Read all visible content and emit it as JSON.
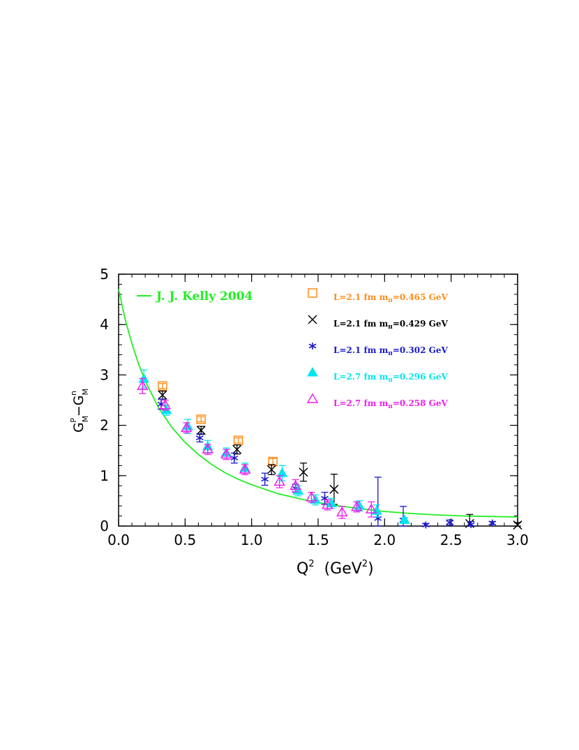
{
  "chart_data": {
    "type": "scatter",
    "x_axis": {
      "range": [
        0,
        3
      ],
      "ticks": [
        "0.0",
        "0.5",
        "1.0",
        "1.5",
        "2.0",
        "2.5",
        "3.0"
      ],
      "label_main": "Q",
      "label_sup": "2",
      "label_rest": "  (GeV",
      "label_sup2": "2",
      "label_close": ")"
    },
    "y_axis": {
      "range": [
        0,
        5
      ],
      "ticks": [
        "0",
        "1",
        "2",
        "3",
        "4",
        "5"
      ],
      "label_g1": "G",
      "label_sup1": "P",
      "label_sub1": "M",
      "label_minus": "−G",
      "label_sup2": "n",
      "label_sub2": "M"
    },
    "curve": {
      "name": "J. J. Kelly 2004",
      "color": "#22ee22",
      "points": [
        [
          0.0,
          4.7
        ],
        [
          0.05,
          4.1
        ],
        [
          0.1,
          3.62
        ],
        [
          0.15,
          3.22
        ],
        [
          0.2,
          2.88
        ],
        [
          0.3,
          2.35
        ],
        [
          0.4,
          1.96
        ],
        [
          0.5,
          1.66
        ],
        [
          0.6,
          1.42
        ],
        [
          0.7,
          1.22
        ],
        [
          0.8,
          1.06
        ],
        [
          0.9,
          0.93
        ],
        [
          1.0,
          0.82
        ],
        [
          1.2,
          0.64
        ],
        [
          1.4,
          0.52
        ],
        [
          1.6,
          0.42
        ],
        [
          1.8,
          0.35
        ],
        [
          2.0,
          0.29
        ],
        [
          2.2,
          0.25
        ],
        [
          2.4,
          0.22
        ],
        [
          2.6,
          0.2
        ],
        [
          2.8,
          0.19
        ],
        [
          3.0,
          0.18
        ]
      ]
    },
    "series": [
      {
        "name": "L=2.1 fm  m",
        "name_sub": "π",
        "name_rest": "=0.465  GeV",
        "color": "#ff8c1a",
        "marker": "square",
        "points": [
          {
            "x": 0.33,
            "y": 2.78,
            "err": 0.05
          },
          {
            "x": 0.62,
            "y": 2.12,
            "err": 0.05
          },
          {
            "x": 0.9,
            "y": 1.7,
            "err": 0.05
          },
          {
            "x": 1.16,
            "y": 1.28,
            "err": 0.06
          }
        ]
      },
      {
        "name": "L=2.1 fm  m",
        "name_sub": "π",
        "name_rest": "=0.429  GeV",
        "color": "#000000",
        "marker": "x",
        "points": [
          {
            "x": 0.33,
            "y": 2.6,
            "err": 0.08
          },
          {
            "x": 0.62,
            "y": 1.9,
            "err": 0.08
          },
          {
            "x": 0.89,
            "y": 1.52,
            "err": 0.09
          },
          {
            "x": 1.15,
            "y": 1.12,
            "err": 0.1
          },
          {
            "x": 1.39,
            "y": 1.07,
            "err": 0.18
          },
          {
            "x": 1.62,
            "y": 0.73,
            "err": 0.3
          },
          {
            "x": 2.64,
            "y": 0.05,
            "err": 0.18
          },
          {
            "x": 3.0,
            "y": 0.02,
            "err": 0.05
          }
        ]
      },
      {
        "name": "L=2.1 fm  m",
        "name_sub": "π",
        "name_rest": "=0.302  GeV",
        "color": "#1a1acc",
        "marker": "asterisk",
        "points": [
          {
            "x": 0.32,
            "y": 2.42,
            "err": 0.1
          },
          {
            "x": 0.61,
            "y": 1.75,
            "err": 0.08
          },
          {
            "x": 0.87,
            "y": 1.35,
            "err": 0.1
          },
          {
            "x": 1.1,
            "y": 0.93,
            "err": 0.12
          },
          {
            "x": 1.33,
            "y": 0.75,
            "err": 0.08
          },
          {
            "x": 1.55,
            "y": 0.55,
            "err": 0.12
          },
          {
            "x": 1.95,
            "y": 0.15,
            "err": 0.82
          },
          {
            "x": 2.14,
            "y": 0.12,
            "err": 0.27
          },
          {
            "x": 2.31,
            "y": 0.02,
            "err": 0.03
          },
          {
            "x": 2.49,
            "y": 0.07,
            "err": 0.05
          },
          {
            "x": 2.65,
            "y": 0.03,
            "err": 0.06
          },
          {
            "x": 2.81,
            "y": 0.06,
            "err": 0.03
          }
        ]
      },
      {
        "name": "L=2.7 fm  m",
        "name_sub": "π",
        "name_rest": "=0.296  GeV",
        "color": "#00e5ee",
        "marker": "filled-triangle",
        "points": [
          {
            "x": 0.19,
            "y": 2.92,
            "err": 0.18
          },
          {
            "x": 0.36,
            "y": 2.3,
            "err": 0.1
          },
          {
            "x": 0.52,
            "y": 1.98,
            "err": 0.14
          },
          {
            "x": 0.67,
            "y": 1.58,
            "err": 0.12
          },
          {
            "x": 0.81,
            "y": 1.45,
            "err": 0.1
          },
          {
            "x": 0.95,
            "y": 1.15,
            "err": 0.1
          },
          {
            "x": 1.23,
            "y": 1.05,
            "err": 0.15
          },
          {
            "x": 1.35,
            "y": 0.7,
            "err": 0.1
          },
          {
            "x": 1.48,
            "y": 0.52,
            "err": 0.1
          },
          {
            "x": 1.6,
            "y": 0.45,
            "err": 0.1
          },
          {
            "x": 1.81,
            "y": 0.4,
            "err": 0.1
          },
          {
            "x": 1.94,
            "y": 0.3,
            "err": 0.12
          },
          {
            "x": 2.15,
            "y": 0.12,
            "err": 0.05
          }
        ]
      },
      {
        "name": "L=2.7 fm  m",
        "name_sub": "π",
        "name_rest": "=0.258  GeV",
        "color": "#ee22ee",
        "marker": "open-triangle",
        "points": [
          {
            "x": 0.18,
            "y": 2.78,
            "err": 0.15
          },
          {
            "x": 0.35,
            "y": 2.4,
            "err": 0.1
          },
          {
            "x": 0.51,
            "y": 1.95,
            "err": 0.1
          },
          {
            "x": 0.67,
            "y": 1.52,
            "err": 0.1
          },
          {
            "x": 0.81,
            "y": 1.42,
            "err": 0.1
          },
          {
            "x": 0.95,
            "y": 1.12,
            "err": 0.1
          },
          {
            "x": 1.21,
            "y": 0.88,
            "err": 0.12
          },
          {
            "x": 1.33,
            "y": 0.8,
            "err": 0.12
          },
          {
            "x": 1.45,
            "y": 0.57,
            "err": 0.1
          },
          {
            "x": 1.57,
            "y": 0.42,
            "err": 0.1
          },
          {
            "x": 1.68,
            "y": 0.27,
            "err": 0.12
          },
          {
            "x": 1.79,
            "y": 0.38,
            "err": 0.1
          },
          {
            "x": 1.9,
            "y": 0.33,
            "err": 0.15
          }
        ]
      }
    ]
  }
}
